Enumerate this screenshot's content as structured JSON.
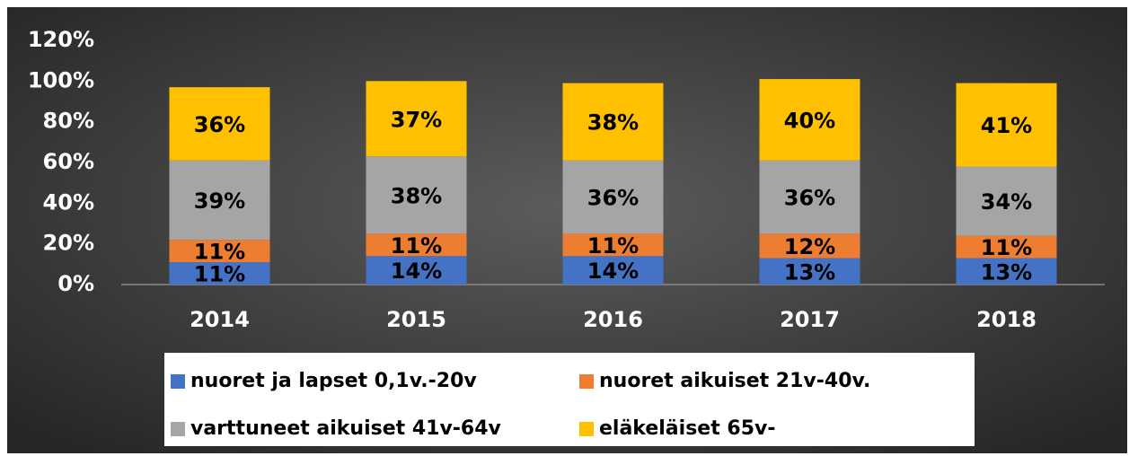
{
  "chart_data": {
    "type": "stacked_bar",
    "categories": [
      "2014",
      "2015",
      "2016",
      "2017",
      "2018"
    ],
    "series": [
      {
        "name": "nuoret ja lapset 0,1v.-20v",
        "color": "#4472c4",
        "values": [
          11,
          14,
          14,
          13,
          13
        ],
        "value_labels": [
          "11%",
          "14%",
          "14%",
          "13%",
          "13%"
        ]
      },
      {
        "name": "nuoret aikuiset 21v-40v.",
        "color": "#ed7d31",
        "values": [
          11,
          11,
          11,
          12,
          11
        ],
        "value_labels": [
          "11%",
          "11%",
          "11%",
          "12%",
          "11%"
        ]
      },
      {
        "name": "varttuneet aikuiset 41v-64v",
        "color": "#a5a5a5",
        "values": [
          39,
          38,
          36,
          36,
          34
        ],
        "value_labels": [
          "39%",
          "38%",
          "36%",
          "36%",
          "34%"
        ]
      },
      {
        "name": "eläkeläiset  65v-",
        "color": "#ffc000",
        "values": [
          36,
          37,
          38,
          40,
          41
        ],
        "value_labels": [
          "36%",
          "37%",
          "38%",
          "40%",
          "41%"
        ]
      }
    ],
    "ylim": [
      0,
      120
    ],
    "yticks": [
      {
        "value": 0,
        "label": "0%"
      },
      {
        "value": 20,
        "label": "20%"
      },
      {
        "value": 40,
        "label": "40%"
      },
      {
        "value": 60,
        "label": "60%"
      },
      {
        "value": 80,
        "label": "80%"
      },
      {
        "value": 100,
        "label": "100%"
      },
      {
        "value": 120,
        "label": "120%"
      }
    ],
    "grid": false,
    "legend": "bottom"
  }
}
